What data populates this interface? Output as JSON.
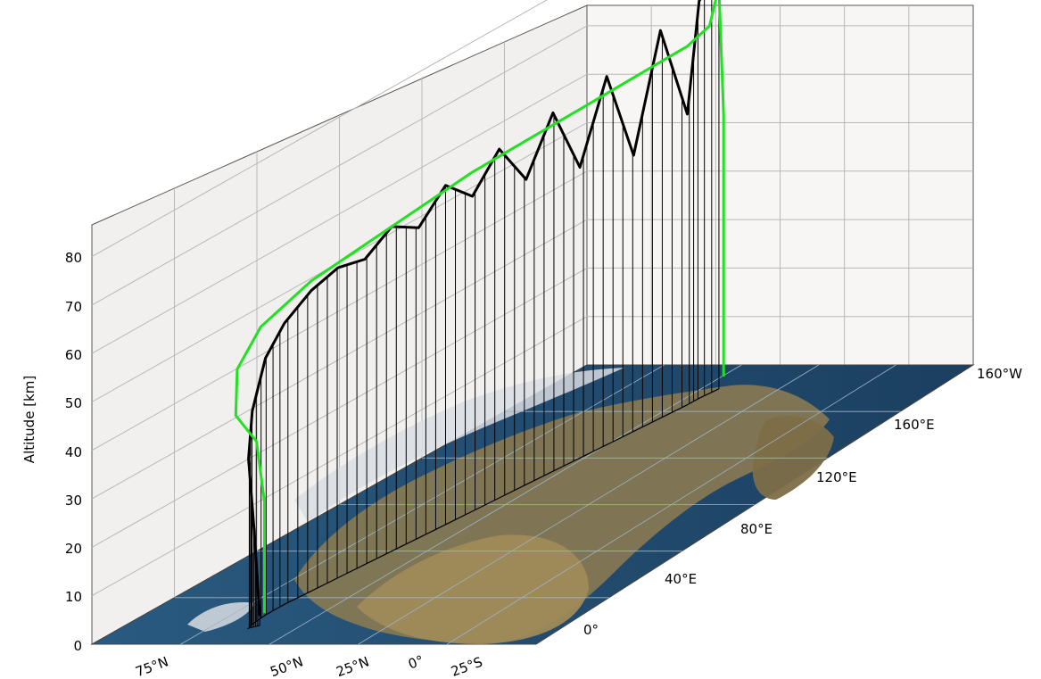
{
  "chart_data": {
    "type": "line",
    "title": "",
    "zlabel": "Altitude [km]",
    "z_ticks": [
      "0",
      "10",
      "20",
      "30",
      "40",
      "50",
      "60",
      "70",
      "80"
    ],
    "zlim": [
      0,
      85
    ],
    "lat_ticks": [
      "75°N",
      "50°N",
      "25°N",
      "0°",
      "25°S"
    ],
    "lon_ticks": [
      "0°",
      "40°E",
      "80°E",
      "120°E",
      "160°E",
      "160°W"
    ],
    "grid": true,
    "legend": "none",
    "colors": {
      "trajectory_black": "#000000",
      "trajectory_green": "#22e022",
      "wall_fill": "#f1f0ee",
      "grid": "#b8b8b8",
      "ocean": "#1f4a6e",
      "land": "#8a7a52"
    },
    "series": [
      {
        "color": "#000000",
        "points": [
          {
            "lon": -6,
            "lat": 49,
            "alt": 2
          },
          {
            "lon": -7,
            "lat": 50,
            "alt": 20
          },
          {
            "lon": -8,
            "lat": 51,
            "alt": 35
          },
          {
            "lon": -5,
            "lat": 52,
            "alt": 44
          },
          {
            "lon": 2,
            "lat": 53,
            "alt": 53
          },
          {
            "lon": 10,
            "lat": 53,
            "alt": 58
          },
          {
            "lon": 20,
            "lat": 52,
            "alt": 62
          },
          {
            "lon": 30,
            "lat": 51,
            "alt": 64
          },
          {
            "lon": 40,
            "lat": 50,
            "alt": 63
          },
          {
            "lon": 50,
            "lat": 49,
            "alt": 67
          },
          {
            "lon": 60,
            "lat": 48,
            "alt": 64
          },
          {
            "lon": 70,
            "lat": 47,
            "alt": 70
          },
          {
            "lon": 80,
            "lat": 46,
            "alt": 65
          },
          {
            "lon": 90,
            "lat": 45,
            "alt": 72
          },
          {
            "lon": 100,
            "lat": 44,
            "alt": 63
          },
          {
            "lon": 110,
            "lat": 43,
            "alt": 74
          },
          {
            "lon": 120,
            "lat": 42,
            "alt": 60
          },
          {
            "lon": 130,
            "lat": 41,
            "alt": 76
          },
          {
            "lon": 140,
            "lat": 40,
            "alt": 57
          },
          {
            "lon": 150,
            "lat": 39,
            "alt": 80
          },
          {
            "lon": 160,
            "lat": 38,
            "alt": 60
          },
          {
            "lon": 165,
            "lat": 38,
            "alt": 82
          },
          {
            "lon": 172,
            "lat": 37,
            "alt": 86
          }
        ]
      },
      {
        "color": "#22e022",
        "points": [
          {
            "lon": -4,
            "lat": 49,
            "alt": 2
          },
          {
            "lon": -4,
            "lat": 49,
            "alt": 25
          },
          {
            "lon": -6,
            "lat": 50,
            "alt": 38
          },
          {
            "lon": -12,
            "lat": 52,
            "alt": 45
          },
          {
            "lon": -10,
            "lat": 53,
            "alt": 54
          },
          {
            "lon": 0,
            "lat": 53,
            "alt": 60
          },
          {
            "lon": 20,
            "lat": 52,
            "alt": 64
          },
          {
            "lon": 40,
            "lat": 50,
            "alt": 66
          },
          {
            "lon": 60,
            "lat": 48,
            "alt": 68
          },
          {
            "lon": 80,
            "lat": 46,
            "alt": 70
          },
          {
            "lon": 100,
            "lat": 44,
            "alt": 71
          },
          {
            "lon": 120,
            "lat": 42,
            "alt": 72
          },
          {
            "lon": 140,
            "lat": 40,
            "alt": 73
          },
          {
            "lon": 160,
            "lat": 38,
            "alt": 74
          },
          {
            "lon": 168,
            "lat": 37,
            "alt": 76
          },
          {
            "lon": 172,
            "lat": 37,
            "alt": 83
          },
          {
            "lon": 174,
            "lat": 37,
            "alt": 56
          },
          {
            "lon": 174,
            "lat": 37,
            "alt": 2
          }
        ]
      }
    ]
  }
}
